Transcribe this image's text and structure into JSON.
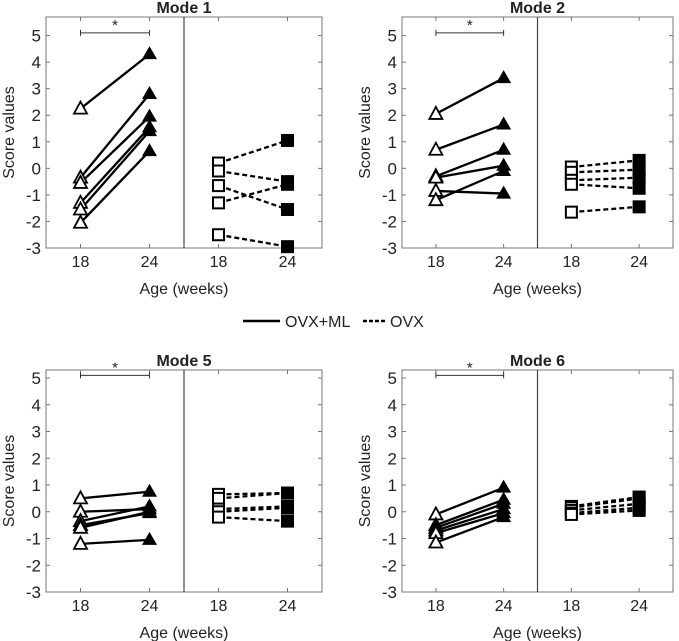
{
  "legend": {
    "ml": "OVX+ML",
    "ovx": "OVX"
  },
  "chart_data": [
    {
      "type": "line",
      "title": "Mode 1",
      "xlabel": "Age (weeks)",
      "ylabel": "Score values",
      "ylim": [
        -3,
        5.7
      ],
      "yticks": [
        -3,
        -2,
        -1,
        0,
        1,
        2,
        3,
        4,
        5
      ],
      "xticks": [
        "18",
        "24",
        "18",
        "24"
      ],
      "significance": "*",
      "series": [
        {
          "name": "OVX+ML",
          "pairs": [
            [
              2.25,
              4.3
            ],
            [
              -0.35,
              2.8
            ],
            [
              -0.55,
              1.95
            ],
            [
              -1.3,
              1.55
            ],
            [
              -1.55,
              1.4
            ],
            [
              -2.05,
              0.65
            ]
          ]
        },
        {
          "name": "OVX",
          "pairs": [
            [
              0.2,
              1.05
            ],
            [
              -0.1,
              -0.5
            ],
            [
              -0.65,
              -1.55
            ],
            [
              -1.3,
              -0.6
            ],
            [
              -2.5,
              -2.95
            ]
          ]
        }
      ]
    },
    {
      "type": "line",
      "title": "Mode 2",
      "xlabel": "Age (weeks)",
      "ylabel": "Score values",
      "ylim": [
        -3,
        5.7
      ],
      "yticks": [
        -3,
        -2,
        -1,
        0,
        1,
        2,
        3,
        4,
        5
      ],
      "xticks": [
        "18",
        "24",
        "18",
        "24"
      ],
      "significance": "*",
      "series": [
        {
          "name": "OVX+ML",
          "pairs": [
            [
              2.05,
              3.4
            ],
            [
              0.7,
              1.65
            ],
            [
              -0.3,
              0.7
            ],
            [
              -0.35,
              0.1
            ],
            [
              -0.85,
              -0.95
            ],
            [
              -1.2,
              -0.1
            ]
          ]
        },
        {
          "name": "OVX",
          "pairs": [
            [
              0.05,
              0.3
            ],
            [
              -0.15,
              -0.05
            ],
            [
              -0.45,
              -0.35
            ],
            [
              -0.6,
              -0.75
            ],
            [
              -1.65,
              -1.45
            ]
          ]
        }
      ]
    },
    {
      "type": "line",
      "title": "Mode 5",
      "xlabel": "Age (weeks)",
      "ylabel": "Score values",
      "ylim": [
        -3,
        5.3
      ],
      "yticks": [
        -3,
        -2,
        -1,
        0,
        1,
        2,
        3,
        4,
        5
      ],
      "xticks": [
        "18",
        "24",
        "18",
        "24"
      ],
      "significance": "*",
      "series": [
        {
          "name": "OVX+ML",
          "pairs": [
            [
              0.5,
              0.75
            ],
            [
              0,
              0.1
            ],
            [
              -0.35,
              0.2
            ],
            [
              -0.5,
              -0.05
            ],
            [
              -0.6,
              0
            ],
            [
              -1.2,
              -1.05
            ]
          ]
        },
        {
          "name": "OVX",
          "pairs": [
            [
              0.65,
              0.7
            ],
            [
              0.5,
              0.7
            ],
            [
              0.1,
              0.2
            ],
            [
              0,
              0.15
            ],
            [
              -0.2,
              -0.35
            ]
          ]
        }
      ]
    },
    {
      "type": "line",
      "title": "Mode 6",
      "xlabel": "Age (weeks)",
      "ylabel": "Score values",
      "ylim": [
        -3,
        5.3
      ],
      "yticks": [
        -3,
        -2,
        -1,
        0,
        1,
        2,
        3,
        4,
        5
      ],
      "xticks": [
        "18",
        "24",
        "18",
        "24"
      ],
      "significance": "*",
      "series": [
        {
          "name": "OVX+ML",
          "pairs": [
            [
              -0.1,
              0.9
            ],
            [
              -0.5,
              0.45
            ],
            [
              -0.6,
              0.3
            ],
            [
              -0.7,
              0.1
            ],
            [
              -0.8,
              -0.05
            ],
            [
              -1.15,
              -0.2
            ]
          ]
        },
        {
          "name": "OVX",
          "pairs": [
            [
              0.2,
              0.55
            ],
            [
              0.15,
              0.5
            ],
            [
              0.05,
              0.3
            ],
            [
              -0.05,
              0.15
            ],
            [
              -0.1,
              0.05
            ]
          ]
        }
      ]
    }
  ]
}
